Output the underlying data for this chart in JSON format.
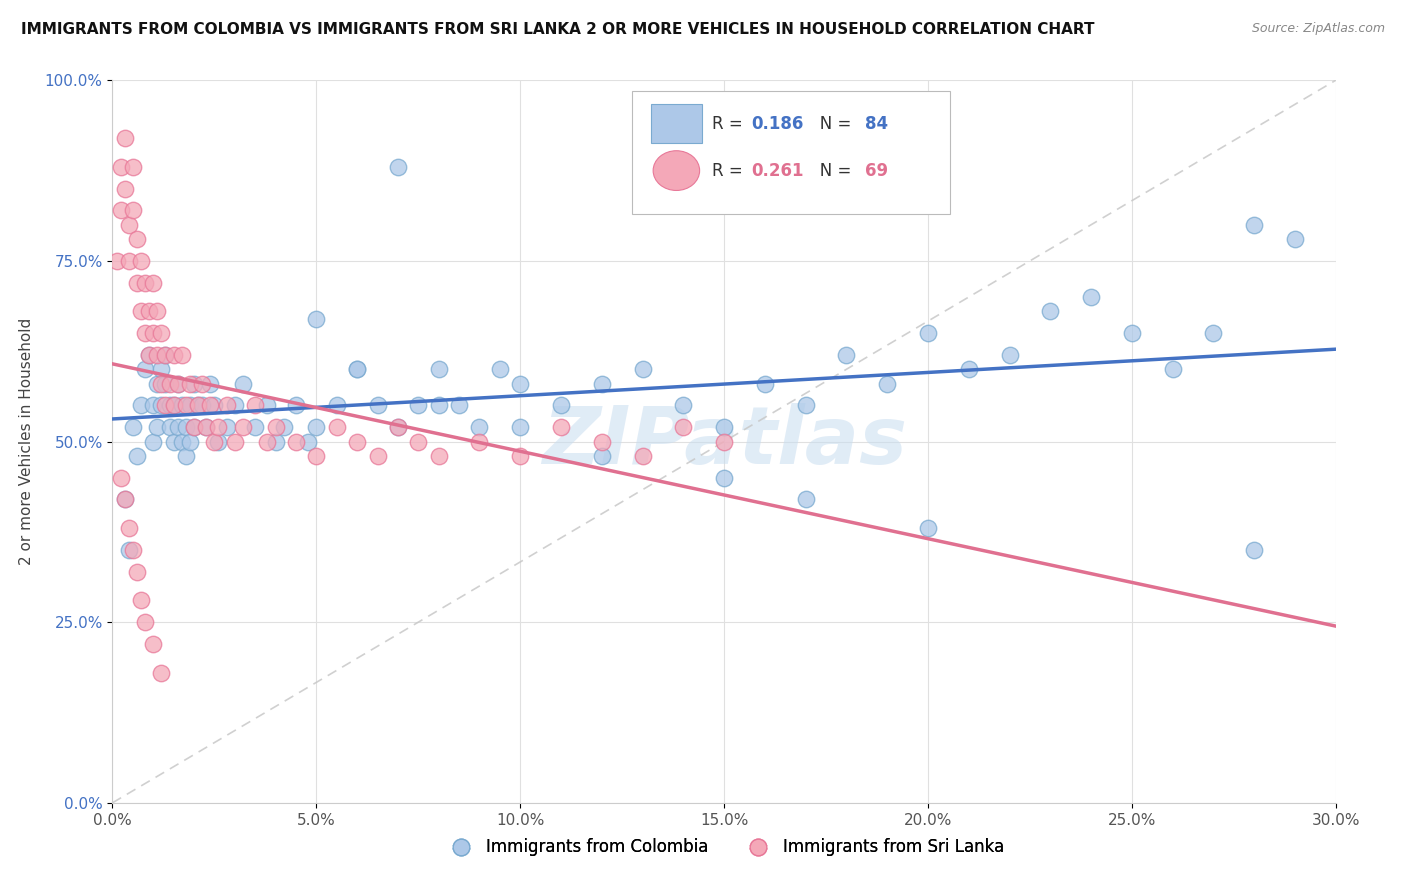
{
  "title": "IMMIGRANTS FROM COLOMBIA VS IMMIGRANTS FROM SRI LANKA 2 OR MORE VEHICLES IN HOUSEHOLD CORRELATION CHART",
  "source": "Source: ZipAtlas.com",
  "xlim": [
    0.0,
    0.3
  ],
  "ylim": [
    0.0,
    1.0
  ],
  "ylabel": "2 or more Vehicles in Household",
  "colombia_R": "0.186",
  "colombia_N": "84",
  "srilanka_R": "0.261",
  "srilanka_N": "69",
  "colombia_color": "#adc8e8",
  "srilanka_color": "#f4a8b8",
  "colombia_edge_color": "#7aaad0",
  "srilanka_edge_color": "#e87898",
  "colombia_line_color": "#4472c4",
  "srilanka_line_color": "#e07090",
  "diagonal_color": "#c8c8c8",
  "watermark": "ZIPatlas",
  "legend_label_colombia": "Immigrants from Colombia",
  "legend_label_srilanka": "Immigrants from Sri Lanka",
  "colombia_x": [
    0.003,
    0.004,
    0.005,
    0.006,
    0.007,
    0.008,
    0.009,
    0.01,
    0.01,
    0.011,
    0.011,
    0.012,
    0.012,
    0.013,
    0.013,
    0.014,
    0.014,
    0.015,
    0.015,
    0.016,
    0.016,
    0.017,
    0.017,
    0.018,
    0.018,
    0.019,
    0.019,
    0.02,
    0.02,
    0.021,
    0.022,
    0.023,
    0.024,
    0.025,
    0.026,
    0.028,
    0.03,
    0.032,
    0.035,
    0.038,
    0.04,
    0.042,
    0.045,
    0.048,
    0.05,
    0.055,
    0.06,
    0.065,
    0.07,
    0.075,
    0.08,
    0.085,
    0.09,
    0.095,
    0.1,
    0.11,
    0.12,
    0.13,
    0.14,
    0.15,
    0.16,
    0.17,
    0.18,
    0.19,
    0.2,
    0.21,
    0.22,
    0.23,
    0.24,
    0.25,
    0.26,
    0.27,
    0.28,
    0.29,
    0.05,
    0.06,
    0.08,
    0.1,
    0.12,
    0.15,
    0.17,
    0.2,
    0.28,
    0.07
  ],
  "colombia_y": [
    0.42,
    0.35,
    0.52,
    0.48,
    0.55,
    0.6,
    0.62,
    0.5,
    0.55,
    0.58,
    0.52,
    0.6,
    0.55,
    0.62,
    0.58,
    0.55,
    0.52,
    0.5,
    0.55,
    0.58,
    0.52,
    0.55,
    0.5,
    0.48,
    0.52,
    0.55,
    0.5,
    0.52,
    0.58,
    0.55,
    0.55,
    0.52,
    0.58,
    0.55,
    0.5,
    0.52,
    0.55,
    0.58,
    0.52,
    0.55,
    0.5,
    0.52,
    0.55,
    0.5,
    0.52,
    0.55,
    0.6,
    0.55,
    0.52,
    0.55,
    0.6,
    0.55,
    0.52,
    0.6,
    0.58,
    0.55,
    0.58,
    0.6,
    0.55,
    0.52,
    0.58,
    0.55,
    0.62,
    0.58,
    0.65,
    0.6,
    0.62,
    0.68,
    0.7,
    0.65,
    0.6,
    0.65,
    0.8,
    0.78,
    0.67,
    0.6,
    0.55,
    0.52,
    0.48,
    0.45,
    0.42,
    0.38,
    0.35,
    0.88
  ],
  "srilanka_x": [
    0.001,
    0.002,
    0.002,
    0.003,
    0.003,
    0.004,
    0.004,
    0.005,
    0.005,
    0.006,
    0.006,
    0.007,
    0.007,
    0.008,
    0.008,
    0.009,
    0.009,
    0.01,
    0.01,
    0.011,
    0.011,
    0.012,
    0.012,
    0.013,
    0.013,
    0.014,
    0.015,
    0.015,
    0.016,
    0.017,
    0.018,
    0.019,
    0.02,
    0.021,
    0.022,
    0.023,
    0.024,
    0.025,
    0.026,
    0.028,
    0.03,
    0.032,
    0.035,
    0.038,
    0.04,
    0.045,
    0.05,
    0.055,
    0.06,
    0.065,
    0.07,
    0.075,
    0.08,
    0.09,
    0.1,
    0.11,
    0.12,
    0.13,
    0.14,
    0.15,
    0.002,
    0.003,
    0.004,
    0.005,
    0.006,
    0.007,
    0.008,
    0.01,
    0.012
  ],
  "srilanka_y": [
    0.75,
    0.88,
    0.82,
    0.92,
    0.85,
    0.8,
    0.75,
    0.88,
    0.82,
    0.78,
    0.72,
    0.75,
    0.68,
    0.72,
    0.65,
    0.68,
    0.62,
    0.65,
    0.72,
    0.68,
    0.62,
    0.65,
    0.58,
    0.62,
    0.55,
    0.58,
    0.62,
    0.55,
    0.58,
    0.62,
    0.55,
    0.58,
    0.52,
    0.55,
    0.58,
    0.52,
    0.55,
    0.5,
    0.52,
    0.55,
    0.5,
    0.52,
    0.55,
    0.5,
    0.52,
    0.5,
    0.48,
    0.52,
    0.5,
    0.48,
    0.52,
    0.5,
    0.48,
    0.5,
    0.48,
    0.52,
    0.5,
    0.48,
    0.52,
    0.5,
    0.45,
    0.42,
    0.38,
    0.35,
    0.32,
    0.28,
    0.25,
    0.22,
    0.18
  ]
}
